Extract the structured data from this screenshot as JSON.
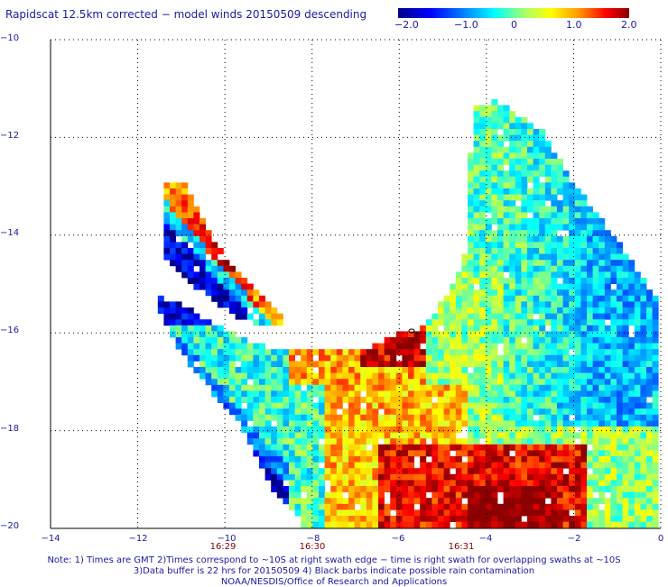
{
  "title": "Rapidscat 12.5km corrected − model winds 20150509 descending",
  "colorbar": {
    "labels": [
      "−2.0",
      "−1.0",
      "0",
      "1.0",
      "2.0"
    ],
    "colors": [
      "#00008b",
      "#0000ff",
      "#00ffff",
      "#ffff00",
      "#ff0000",
      "#8b0000"
    ]
  },
  "axes": {
    "x_ticks": [
      "−14",
      "−12",
      "−10",
      "−8",
      "−6",
      "−4",
      "−2",
      "0"
    ],
    "y_ticks": [
      "−10",
      "−12",
      "−14",
      "−16",
      "−18",
      "−20"
    ],
    "time_labels": [
      "16:29",
      "16:30",
      "16:31"
    ],
    "lon_range": [
      -14,
      0
    ],
    "lat_range": [
      -20,
      -10
    ],
    "grid": "dotted"
  },
  "notes": {
    "line1": "Note: 1) Times are GMT 2)Times correspond to ~10S at right swath edge − time is right swath for overlapping swaths at ~10S",
    "line2": "3)Data buffer is 22 hrs for 20150509 4) Black barbs indicate possible rain contamination",
    "line3": "NOAA/NESDIS/Office of Research and Applications"
  }
}
